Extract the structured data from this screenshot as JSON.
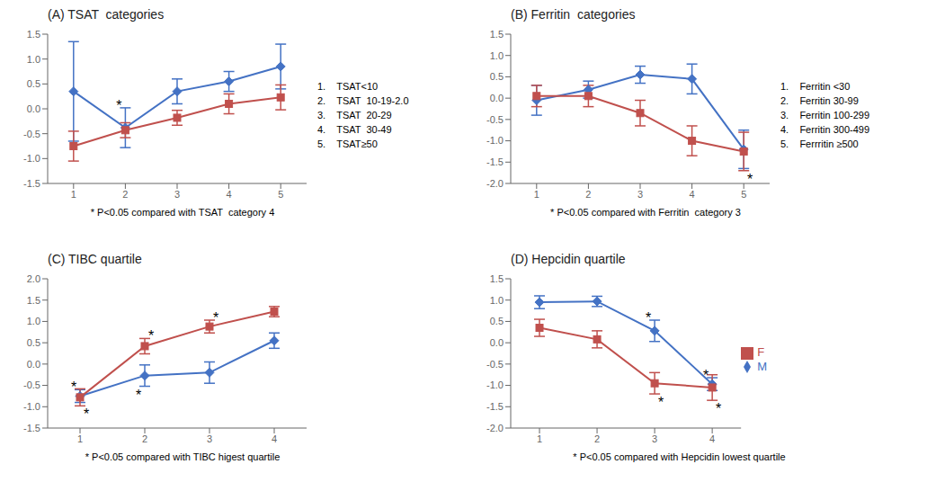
{
  "chart_data": [
    {
      "type": "line",
      "title": "(A) TSAT  categories",
      "xlabel": "* P<0.05 compared with TSAT  category 4",
      "x": [
        1,
        2,
        3,
        4,
        5
      ],
      "xlim": [
        0.5,
        5.5
      ],
      "xticks": [
        1,
        2,
        3,
        4,
        5
      ],
      "ylim": [
        -1.5,
        1.5
      ],
      "yticks": [
        -1.5,
        {
          "value": -1.0,
          "label": "-1.0"
        },
        -0.5,
        {
          "value": 0.0,
          "label": "0.0"
        },
        0.5,
        {
          "value": 1.0,
          "label": "1.0"
        },
        1.5
      ],
      "grid": false,
      "legend": false,
      "series": [
        {
          "name": "M",
          "color": "#4472C4",
          "marker": "diamond",
          "values": [
            0.35,
            -0.38,
            0.35,
            0.55,
            0.85
          ],
          "errors": [
            1.0,
            0.4,
            0.25,
            0.2,
            0.45
          ]
        },
        {
          "name": "F",
          "color": "#C0504D",
          "marker": "square",
          "values": [
            -0.75,
            -0.43,
            -0.18,
            0.1,
            0.23
          ],
          "errors": [
            0.3,
            0.15,
            0.15,
            0.2,
            0.25
          ]
        }
      ],
      "annotations": [
        {
          "text": "*",
          "series": "M",
          "x": 2
        },
        {
          "text": "1.    TSAT<10"
        },
        {
          "text": "2.    TSAT  10-19-2.0"
        },
        {
          "text": "3.    TSAT  20-29"
        },
        {
          "text": "4.    TSAT  30-49"
        },
        {
          "text": "5.    TSAT≥50"
        }
      ]
    },
    {
      "type": "line",
      "title": "(B) Ferritin  categories",
      "xlabel": "* P<0.05 compared with Ferritin  category 3",
      "x": [
        1,
        2,
        3,
        4,
        5
      ],
      "xlim": [
        0.5,
        5.5
      ],
      "xticks": [
        1,
        2,
        3,
        4,
        5
      ],
      "ylim": [
        -2.0,
        1.5
      ],
      "yticks": [
        {
          "value": -2.0,
          "label": "-2.0"
        },
        -1.5,
        {
          "value": -1.0,
          "label": "-1.0"
        },
        -0.5,
        {
          "value": 0.0,
          "label": "0.0"
        },
        0.5,
        {
          "value": 1.0,
          "label": "1.0"
        },
        1.5
      ],
      "grid": false,
      "legend": false,
      "series": [
        {
          "name": "M",
          "color": "#4472C4",
          "marker": "diamond",
          "values": [
            -0.05,
            0.2,
            0.55,
            0.45,
            -1.2
          ],
          "errors": [
            0.35,
            0.2,
            0.2,
            0.35,
            0.45
          ]
        },
        {
          "name": "F",
          "color": "#C0504D",
          "marker": "square",
          "values": [
            0.05,
            0.05,
            -0.35,
            -1.0,
            -1.25
          ],
          "errors": [
            0.25,
            0.25,
            0.3,
            0.35,
            0.45
          ]
        }
      ],
      "annotations": [
        {
          "text": "*",
          "series": "F",
          "x": 5
        },
        {
          "text": "1.    Ferritin <30"
        },
        {
          "text": "2.    Ferritin 30-99"
        },
        {
          "text": "3.    Ferritin 100-299"
        },
        {
          "text": "4.    Ferritin 300-499"
        },
        {
          "text": "5.    Ferrritin ≥500"
        }
      ]
    },
    {
      "type": "line",
      "title": "(C) TIBC quartile",
      "xlabel": "* P<0.05 compared with TIBC higest quartile",
      "x": [
        1,
        2,
        3,
        4
      ],
      "xlim": [
        0.5,
        4.5
      ],
      "xticks": [
        1,
        2,
        3,
        4
      ],
      "ylim": [
        -1.5,
        2.0
      ],
      "yticks": [
        -1.5,
        {
          "value": -1.0,
          "label": "-1.0"
        },
        -0.5,
        {
          "value": 0.0,
          "label": "0.0"
        },
        0.5,
        {
          "value": 1.0,
          "label": "1.0"
        },
        1.5,
        {
          "value": 2.0,
          "label": "2.0"
        }
      ],
      "grid": false,
      "legend": false,
      "series": [
        {
          "name": "M",
          "color": "#4472C4",
          "marker": "diamond",
          "values": [
            -0.75,
            -0.27,
            -0.2,
            0.55
          ],
          "errors": [
            0.15,
            0.25,
            0.25,
            0.18
          ]
        },
        {
          "name": "F",
          "color": "#C0504D",
          "marker": "square",
          "values": [
            -0.78,
            0.42,
            0.88,
            1.23
          ],
          "errors": [
            0.2,
            0.18,
            0.15,
            0.12
          ]
        }
      ],
      "annotations": [
        {
          "text": "*",
          "series": "M",
          "x": 1
        },
        {
          "text": "*",
          "series": "M",
          "x": 2
        },
        {
          "text": "*",
          "series": "F",
          "x": 1
        },
        {
          "text": "*",
          "series": "F",
          "x": 2
        },
        {
          "text": "*",
          "series": "F",
          "x": 3
        }
      ]
    },
    {
      "type": "line",
      "title": "(D) Hepcidin quartile",
      "xlabel": "* P<0.05 compared with Hepcidin lowest quartile",
      "x": [
        1,
        2,
        3,
        4
      ],
      "xlim": [
        0.5,
        4.5
      ],
      "xticks": [
        1,
        2,
        3,
        4
      ],
      "ylim": [
        -2.0,
        1.5
      ],
      "yticks": [
        {
          "value": -2.0,
          "label": "-2.0"
        },
        -1.5,
        {
          "value": -1.0,
          "label": "-1.0"
        },
        -0.5,
        {
          "value": 0.0,
          "label": "0.0"
        },
        0.5,
        {
          "value": 1.0,
          "label": "1.0"
        },
        1.5
      ],
      "grid": false,
      "legend": "right",
      "series": [
        {
          "name": "M",
          "color": "#4472C4",
          "marker": "diamond",
          "values": [
            0.95,
            0.97,
            0.28,
            -0.97
          ],
          "errors": [
            0.15,
            0.12,
            0.25,
            0.15
          ]
        },
        {
          "name": "F",
          "color": "#C0504D",
          "marker": "square",
          "values": [
            0.35,
            0.08,
            -0.95,
            -1.05
          ],
          "errors": [
            0.2,
            0.2,
            0.25,
            0.3
          ]
        }
      ],
      "annotations": [
        {
          "text": "*",
          "series": "M",
          "x": 3
        },
        {
          "text": "*",
          "series": "M",
          "x": 4
        },
        {
          "text": "*",
          "series": "F",
          "x": 3
        },
        {
          "text": "*",
          "series": "F",
          "x": 4
        }
      ]
    }
  ]
}
